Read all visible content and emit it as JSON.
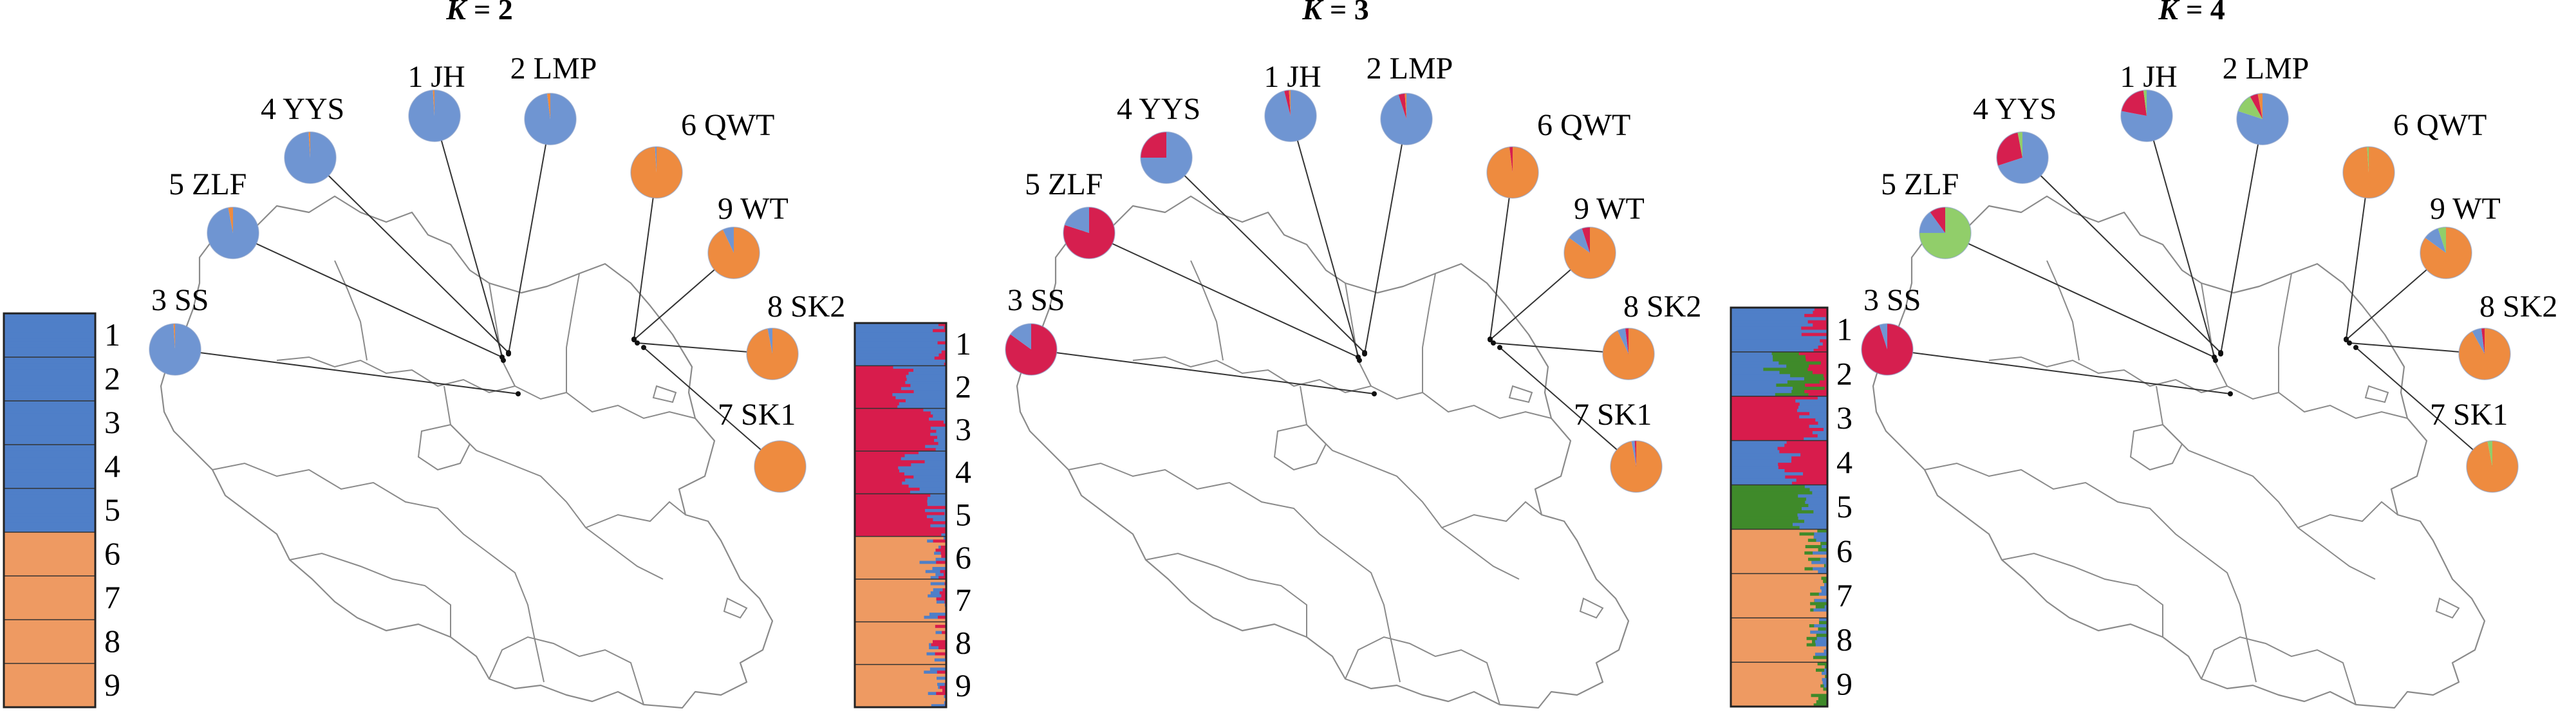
{
  "colors": {
    "blue": "#6f95d2",
    "orange": "#ee8b3f",
    "red": "#d61f4f",
    "green": "#91ce6a",
    "bar_blue": "#4f7fc8",
    "bar_orange": "#ee9a62",
    "bar_red": "#d81c4c",
    "bar_green": "#3f8a2a",
    "map": "#8a8a8a",
    "line": "#333333"
  },
  "panels": [
    {
      "k_label": "K = 2",
      "k_var": "K",
      "k_value": "= 2",
      "sites": [
        {
          "label": "1 JH",
          "fractions": {
            "blue": 0.99,
            "orange": 0.01
          }
        },
        {
          "label": "2 LMP",
          "fractions": {
            "blue": 0.98,
            "orange": 0.02
          }
        },
        {
          "label": "3 SS",
          "fractions": {
            "blue": 0.99,
            "orange": 0.01
          }
        },
        {
          "label": "4 YYS",
          "fractions": {
            "blue": 0.99,
            "orange": 0.01
          }
        },
        {
          "label": "5 ZLF",
          "fractions": {
            "blue": 0.97,
            "orange": 0.03
          }
        },
        {
          "label": "6 QWT",
          "fractions": {
            "orange": 0.99,
            "blue": 0.01
          }
        },
        {
          "label": "7 SK1",
          "fractions": {
            "orange": 1.0
          }
        },
        {
          "label": "8 SK2",
          "fractions": {
            "orange": 0.97,
            "blue": 0.03
          }
        },
        {
          "label": "9 WT",
          "fractions": {
            "orange": 0.93,
            "blue": 0.07
          }
        }
      ],
      "bar": {
        "population_labels": [
          "1",
          "2",
          "3",
          "4",
          "5",
          "6",
          "7",
          "8",
          "9"
        ]
      }
    },
    {
      "k_label": "K = 3",
      "k_var": "K",
      "k_value": "= 3",
      "sites": [
        {
          "label": "1 JH",
          "fractions": {
            "blue": 0.96,
            "red": 0.03,
            "orange": 0.01
          }
        },
        {
          "label": "2 LMP",
          "fractions": {
            "blue": 0.95,
            "red": 0.04,
            "orange": 0.01
          }
        },
        {
          "label": "3 SS",
          "fractions": {
            "red": 0.85,
            "blue": 0.15
          }
        },
        {
          "label": "4 YYS",
          "fractions": {
            "blue": 0.75,
            "red": 0.25
          }
        },
        {
          "label": "5 ZLF",
          "fractions": {
            "red": 0.8,
            "blue": 0.2
          }
        },
        {
          "label": "6 QWT",
          "fractions": {
            "orange": 0.98,
            "red": 0.02
          }
        },
        {
          "label": "7 SK1",
          "fractions": {
            "orange": 0.97,
            "blue": 0.02,
            "red": 0.01
          }
        },
        {
          "label": "8 SK2",
          "fractions": {
            "orange": 0.93,
            "blue": 0.05,
            "red": 0.02
          }
        },
        {
          "label": "9 WT",
          "fractions": {
            "orange": 0.85,
            "blue": 0.1,
            "red": 0.05
          }
        }
      ],
      "bar": {
        "population_labels": [
          "1",
          "2",
          "3",
          "4",
          "5",
          "6",
          "7",
          "8",
          "9"
        ]
      }
    },
    {
      "k_label": "K = 4",
      "k_var": "K",
      "k_value": "= 4",
      "sites": [
        {
          "label": "1 JH",
          "fractions": {
            "blue": 0.78,
            "red": 0.2,
            "green": 0.02
          }
        },
        {
          "label": "2 LMP",
          "fractions": {
            "blue": 0.8,
            "green": 0.12,
            "red": 0.05,
            "orange": 0.03
          }
        },
        {
          "label": "3 SS",
          "fractions": {
            "red": 0.95,
            "blue": 0.05
          }
        },
        {
          "label": "4 YYS",
          "fractions": {
            "blue": 0.7,
            "red": 0.27,
            "green": 0.03
          }
        },
        {
          "label": "5 ZLF",
          "fractions": {
            "green": 0.75,
            "blue": 0.15,
            "red": 0.1
          }
        },
        {
          "label": "6 QWT",
          "fractions": {
            "orange": 0.99,
            "green": 0.01
          }
        },
        {
          "label": "7 SK1",
          "fractions": {
            "orange": 0.97,
            "green": 0.03
          }
        },
        {
          "label": "8 SK2",
          "fractions": {
            "orange": 0.92,
            "blue": 0.06,
            "red": 0.02
          }
        },
        {
          "label": "9 WT",
          "fractions": {
            "orange": 0.85,
            "blue": 0.1,
            "green": 0.05
          }
        }
      ],
      "bar": {
        "population_labels": [
          "1",
          "2",
          "3",
          "4",
          "5",
          "6",
          "7",
          "8",
          "9"
        ]
      }
    }
  ]
}
